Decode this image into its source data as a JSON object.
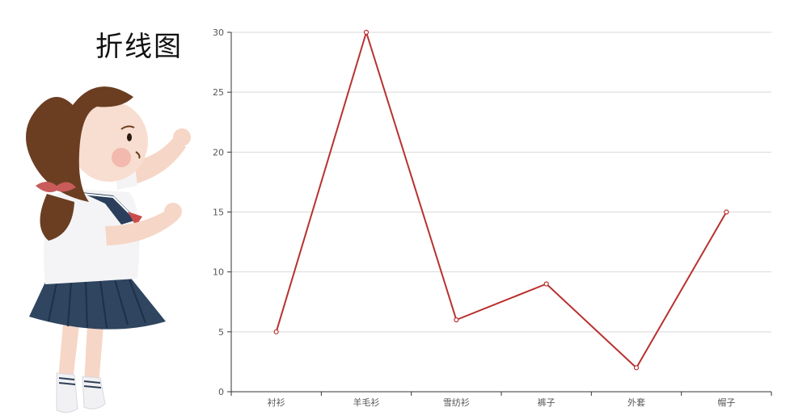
{
  "page": {
    "title": "折线图"
  },
  "chart_data": {
    "type": "line",
    "title": "",
    "xlabel": "",
    "ylabel": "",
    "categories": [
      "衬衫",
      "羊毛衫",
      "雪纺衫",
      "裤子",
      "外套",
      "帽子"
    ],
    "series": [
      {
        "values": [
          5,
          30,
          6,
          9,
          2,
          15
        ]
      }
    ],
    "ylim": [
      0,
      30
    ],
    "yticks": [
      0,
      5,
      10,
      15,
      20,
      25,
      30
    ],
    "grid": true,
    "legend": "none",
    "colors": {
      "line": "#b8312f",
      "grid": "#d9d9d9",
      "axis": "#333333"
    }
  }
}
